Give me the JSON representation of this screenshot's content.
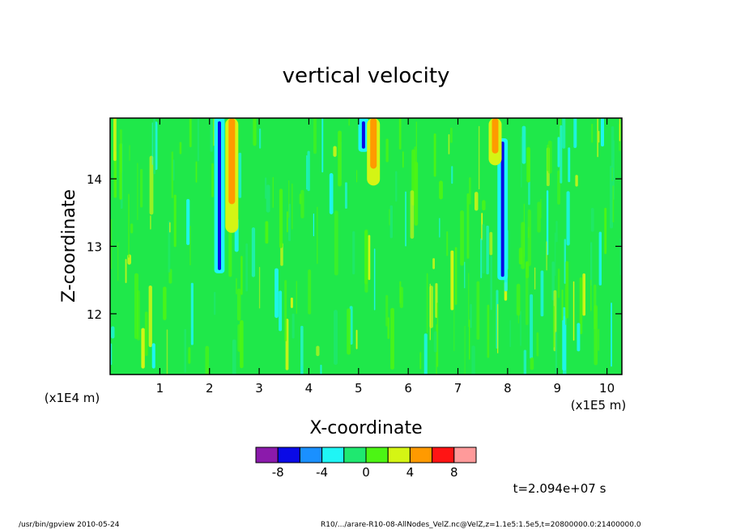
{
  "chart_data": {
    "type": "heatmap",
    "title": "vertical velocity",
    "xlabel": "X-coordinate",
    "ylabel": "Z-coordinate",
    "x_unit_label": "(x1E5 m)",
    "y_unit_label": "(x1E4 m)",
    "xlim": [
      0,
      10.3
    ],
    "ylim": [
      11.1,
      14.9
    ],
    "x_ticks": [
      1,
      2,
      3,
      4,
      5,
      6,
      7,
      8,
      9,
      10
    ],
    "x_tick_labels": [
      "1",
      "2",
      "3",
      "4",
      "5",
      "6",
      "7",
      "8",
      "9",
      "10"
    ],
    "y_ticks": [
      12,
      13,
      14
    ],
    "y_tick_labels": [
      "12",
      "13",
      "14"
    ],
    "background_level_color": "#1fe84a",
    "field_features": [
      {
        "kind": "downdraft",
        "x": 2.2,
        "z_top": 14.9,
        "z_bottom": 12.6,
        "min_value": -6
      },
      {
        "kind": "updraft",
        "x": 2.45,
        "z_top": 14.9,
        "z_bottom": 13.2,
        "max_value": 6
      },
      {
        "kind": "downdraft",
        "x": 5.1,
        "z_top": 14.9,
        "z_bottom": 14.4,
        "min_value": -6
      },
      {
        "kind": "updraft",
        "x": 5.3,
        "z_top": 14.9,
        "z_bottom": 13.9,
        "max_value": 6
      },
      {
        "kind": "downdraft",
        "x": 7.9,
        "z_top": 14.6,
        "z_bottom": 12.5,
        "min_value": -6
      },
      {
        "kind": "updraft",
        "x": 7.75,
        "z_top": 14.9,
        "z_bottom": 14.2,
        "max_value": 6
      }
    ],
    "colorbar": {
      "colors": [
        "#8b1aab",
        "#0a0ae6",
        "#1a90ff",
        "#1ff5f5",
        "#1fe870",
        "#4cf514",
        "#d4f514",
        "#ff9a00",
        "#ff1414",
        "#ff9a9a"
      ],
      "tick_labels": [
        "-8",
        "-4",
        "0",
        "4",
        "8"
      ]
    },
    "time_label": "t=2.094e+07 s"
  },
  "footer": {
    "left": "/usr/bin/gpview  2010-05-24",
    "right": "R10/.../arare-R10-08-AllNodes_VelZ.nc@VelZ,z=1.1e5:1.5e5,t=20800000.0:21400000.0"
  }
}
